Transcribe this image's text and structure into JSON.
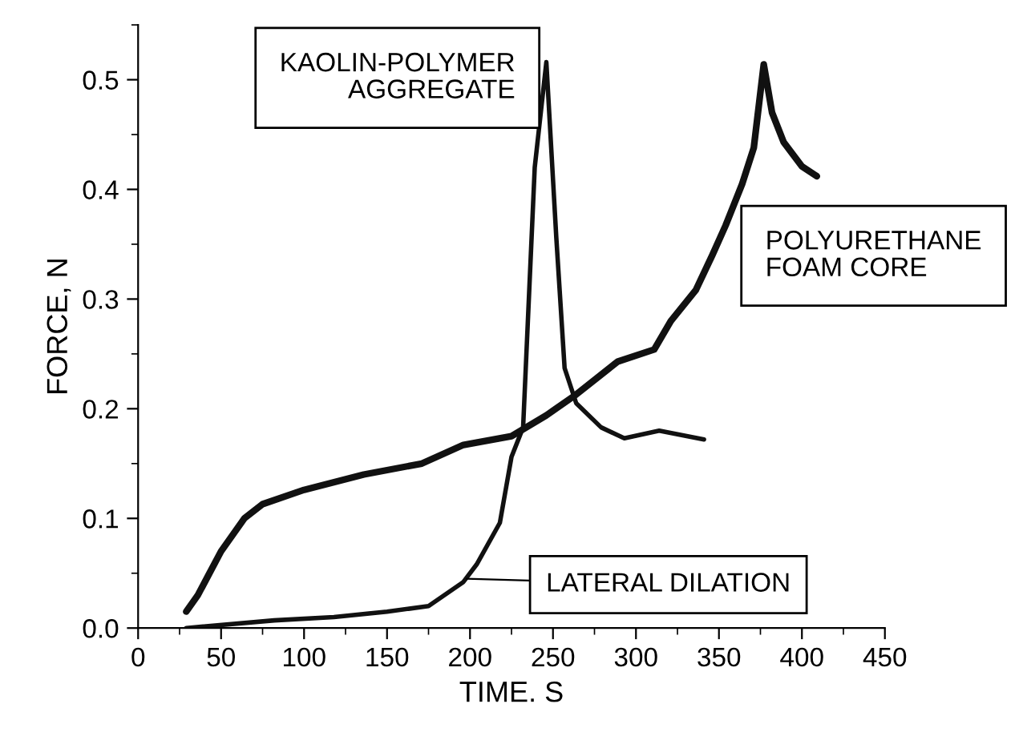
{
  "chart_data": {
    "type": "line",
    "xlabel": "TIME. S",
    "ylabel": "FORCE, N",
    "xlim": [
      0,
      450
    ],
    "xticks": [
      0,
      50,
      100,
      150,
      200,
      250,
      300,
      350,
      400,
      450
    ],
    "ylim": [
      0,
      0.55
    ],
    "yticks": [
      {
        "value": 0,
        "label": "0.0"
      },
      0.1,
      0.2,
      0.3,
      0.4,
      0.5
    ],
    "grid": false,
    "legend": false,
    "marker": "none",
    "line_style": "solid",
    "series": [
      {
        "name": "KAOLIN-POLYMER\nAGGREGATE",
        "color": "#111111",
        "x": [
          29,
          82,
          118,
          150,
          175,
          196,
          204,
          218,
          225,
          232,
          239,
          246,
          252,
          257,
          264,
          279,
          293,
          314,
          341
        ],
        "values": [
          0,
          0.007,
          0.01,
          0.015,
          0.02,
          0.042,
          0.058,
          0.096,
          0.156,
          0.183,
          0.42,
          0.516,
          0.356,
          0.237,
          0.205,
          0.183,
          0.173,
          0.18,
          0.172
        ]
      },
      {
        "name": "POLYURETHANE\nFOAM CORE",
        "color": "#111111",
        "x": [
          29,
          36,
          50,
          64,
          75,
          100,
          136,
          171,
          196,
          225,
          246,
          264,
          289,
          311,
          321,
          336,
          346,
          354,
          364,
          371,
          377,
          382,
          389,
          400,
          409
        ],
        "values": [
          0.015,
          0.03,
          0.07,
          0.1,
          0.113,
          0.126,
          0.14,
          0.15,
          0.167,
          0.175,
          0.194,
          0.213,
          0.243,
          0.254,
          0.28,
          0.308,
          0.34,
          0.367,
          0.405,
          0.438,
          0.514,
          0.47,
          0.443,
          0.421,
          0.412
        ]
      }
    ],
    "annotations": [
      {
        "text": "LATERAL DILATION",
        "x": 198,
        "y": 0.045
      }
    ]
  }
}
